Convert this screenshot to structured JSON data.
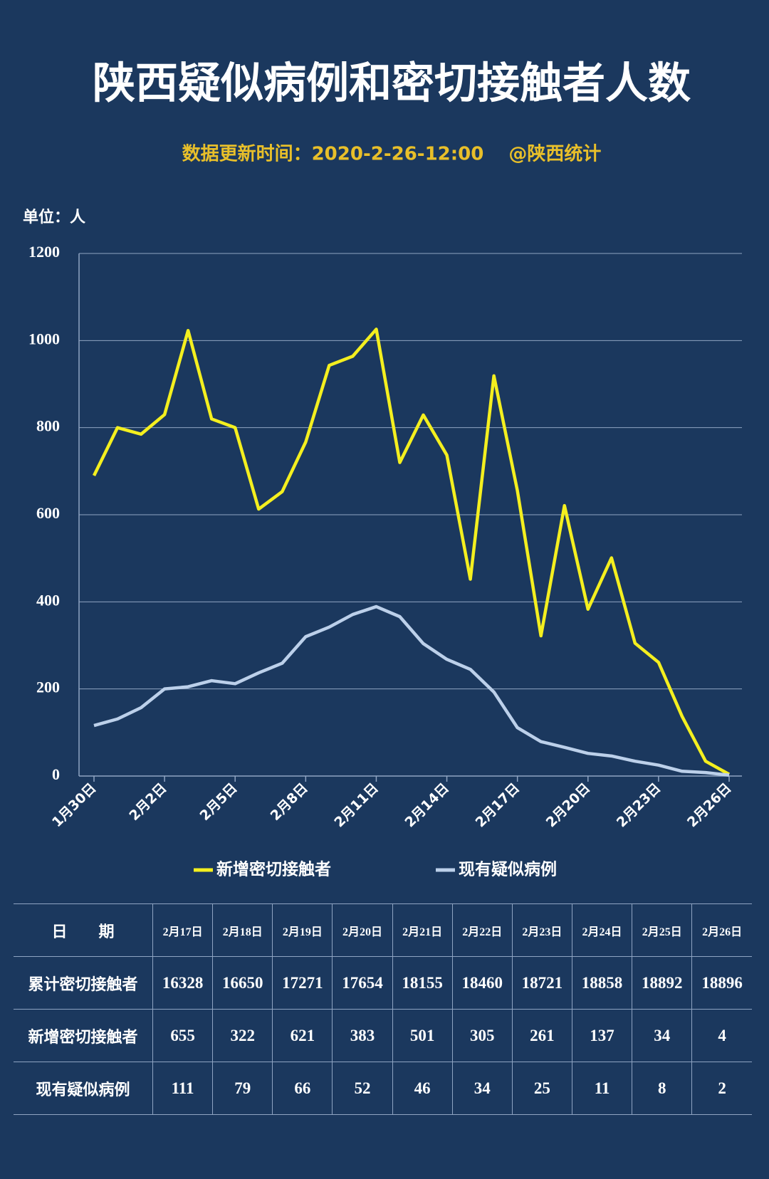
{
  "chart_data": {
    "type": "line",
    "title": "陕西疑似病例和密切接触者人数",
    "subtitle": "数据更新时间：2020-2-26-12:00　 @陕西统计",
    "unit_label": "单位：人",
    "categories": [
      "1月30日",
      null,
      null,
      "2月2日",
      null,
      null,
      "2月5日",
      null,
      null,
      "2月8日",
      null,
      null,
      "2月11日",
      null,
      null,
      "2月14日",
      null,
      null,
      "2月17日",
      null,
      null,
      "2月20日",
      null,
      null,
      "2月23日",
      null,
      null,
      "2月26日"
    ],
    "series": [
      {
        "name": "新增密切接触者",
        "color": "#f4ef1f",
        "values": [
          690,
          800,
          785,
          830,
          1023,
          820,
          800,
          613,
          653,
          767,
          943,
          964,
          1026,
          720,
          829,
          737,
          452,
          919,
          655,
          322,
          621,
          383,
          501,
          305,
          261,
          137,
          34,
          4
        ]
      },
      {
        "name": "现有疑似病例",
        "color": "#bcd0ea",
        "values": [
          116,
          131,
          157,
          200,
          205,
          219,
          212,
          237,
          259,
          320,
          342,
          371,
          389,
          366,
          304,
          268,
          245,
          193,
          111,
          79,
          66,
          52,
          46,
          34,
          25,
          11,
          8,
          2
        ]
      }
    ],
    "ylim": [
      0,
      1200
    ],
    "yticks": [
      0,
      200,
      400,
      600,
      800,
      1000,
      1200
    ],
    "grid": true,
    "legend": "bottom"
  },
  "table": {
    "header": [
      "日　　期",
      "2月17日",
      "2月18日",
      "2月19日",
      "2月20日",
      "2月21日",
      "2月22日",
      "2月23日",
      "2月24日",
      "2月25日",
      "2月26日"
    ],
    "rows": [
      [
        "累计密切接触者",
        16328,
        16650,
        17271,
        17654,
        18155,
        18460,
        18721,
        18858,
        18892,
        18896
      ],
      [
        "新增密切接触者",
        655,
        322,
        621,
        383,
        501,
        305,
        261,
        137,
        34,
        4
      ],
      [
        "现有疑似病例",
        111,
        79,
        66,
        52,
        46,
        34,
        25,
        11,
        8,
        2
      ]
    ]
  }
}
